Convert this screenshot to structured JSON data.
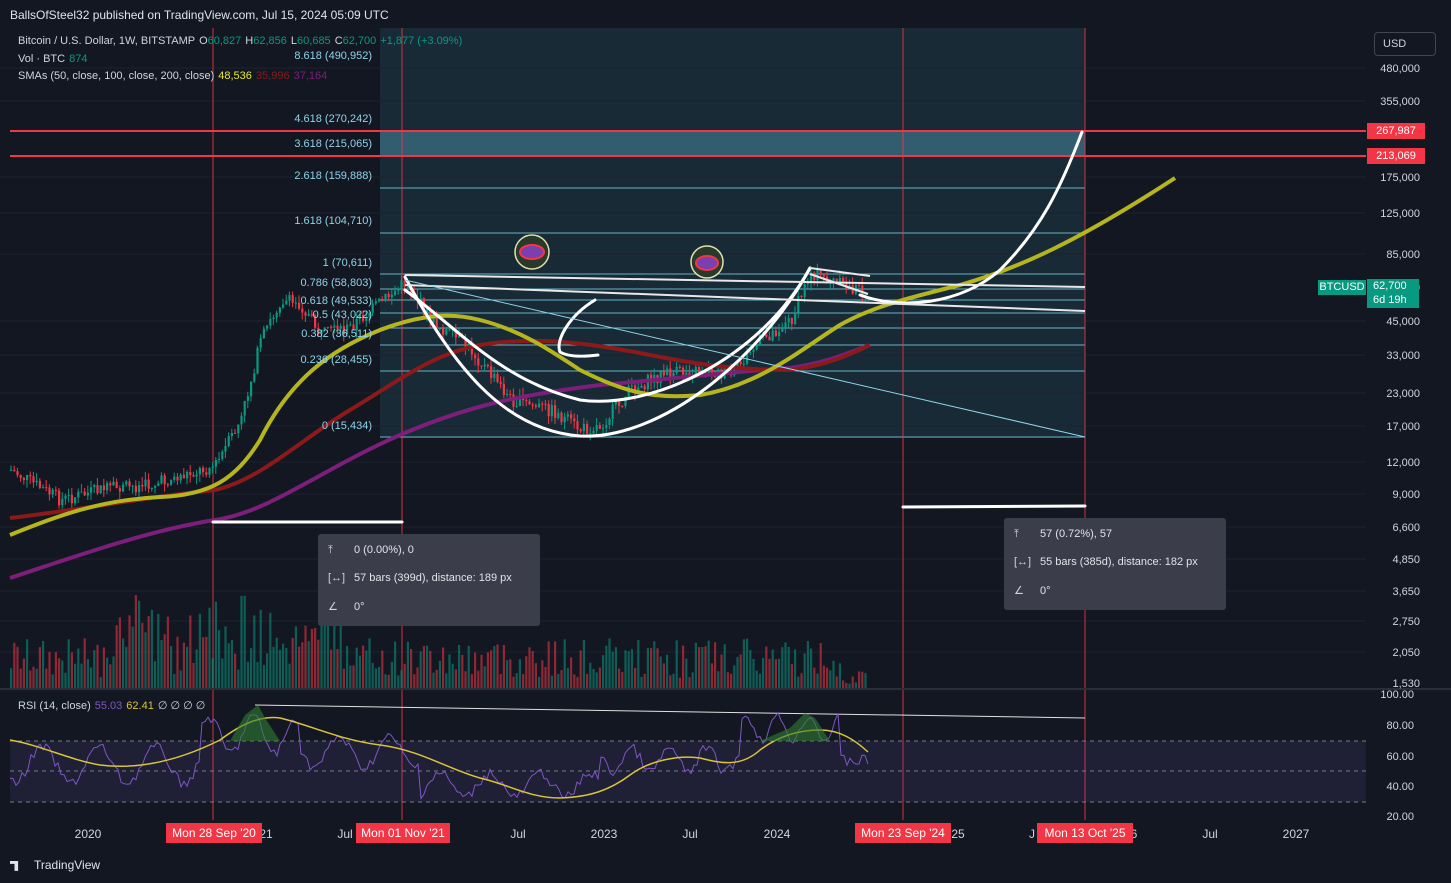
{
  "header": {
    "published": "BallsOfSteel32 published on TradingView.com, Jul 15, 2024 05:09 UTC"
  },
  "legend": {
    "symbol": "Bitcoin / U.S. Dollar, 1W, BITSTAMP",
    "open_label": "O",
    "open": "60,827",
    "high_label": "H",
    "high": "62,856",
    "low_label": "L",
    "low": "60,685",
    "close_label": "C",
    "close": "62,700",
    "change": "+1,877 (+3.09%)",
    "vol_label": "Vol · BTC",
    "vol": "874",
    "sma_label": "SMAs (50, close, 100, close, 200, close)",
    "sma50": "48,536",
    "sma100": "35,996",
    "sma200": "37,164",
    "rsi_label": "RSI (14, close)",
    "rsi": "55.03",
    "rsi_ma": "62.41",
    "rsi_extra": "∅ ∅ ∅ ∅"
  },
  "currency_button": "USD",
  "price_axis": [
    "480,000",
    "355,000",
    "175,000",
    "125,000",
    "85,000",
    "65,000",
    "45,000",
    "33,000",
    "23,000",
    "17,000",
    "12,000",
    "9,000",
    "6,600",
    "4,850",
    "3,650",
    "2,750",
    "2,050",
    "1,530"
  ],
  "rsi_axis": [
    "100.00",
    "80.00",
    "60.00",
    "40.00",
    "20.00"
  ],
  "price_tags": [
    {
      "label": "267,987",
      "color": "#f23645"
    },
    {
      "label": "213,069",
      "color": "#f23645"
    }
  ],
  "current_price": {
    "symbol": "BTCUSD",
    "price": "62,700",
    "countdown": "6d 19h",
    "color": "#089981"
  },
  "fib_levels": [
    {
      "ratio": "8.618",
      "text": "8.618 (490,952)"
    },
    {
      "ratio": "4.618",
      "text": "4.618 (270,242)"
    },
    {
      "ratio": "3.618",
      "text": "3.618 (215,065)"
    },
    {
      "ratio": "2.618",
      "text": "2.618 (159,888)"
    },
    {
      "ratio": "1.618",
      "text": "1.618 (104,710)"
    },
    {
      "ratio": "1",
      "text": "1 (70,611)"
    },
    {
      "ratio": "0.786",
      "text": "0.786 (58,803)"
    },
    {
      "ratio": "0.618",
      "text": "0.618 (49,533)"
    },
    {
      "ratio": "0.5",
      "text": "0.5 (43,022)"
    },
    {
      "ratio": "0.382",
      "text": "0.382 (36,511)"
    },
    {
      "ratio": "0.236",
      "text": "0.236 (28,455)"
    },
    {
      "ratio": "0",
      "text": "0 (15,434)"
    }
  ],
  "time_axis": [
    "2020",
    "21",
    "Jul",
    "Jul",
    "2023",
    "Jul",
    "2024",
    "25",
    "J",
    "6",
    "Jul",
    "2027"
  ],
  "time_markers": [
    "Mon 28 Sep '20",
    "Mon 01 Nov '21",
    "Mon 23 Sep '24",
    "Mon 13 Oct '25"
  ],
  "tooltips": [
    {
      "price_range": "0 (0.00%), 0",
      "bars_range": "57 bars (399d), distance: 189 px",
      "angle": "0°"
    },
    {
      "price_range": "57 (0.72%), 57",
      "bars_range": "55 bars (385d), distance: 182 px",
      "angle": "0°"
    }
  ],
  "footer": {
    "logo": "TradingView"
  },
  "colors": {
    "background": "#131722",
    "up": "#089981",
    "down": "#f23645",
    "sma50": "#b5b51f",
    "sma100": "#8b1a1a",
    "sma200": "#7b1f7b",
    "marker": "#f23645",
    "fib_fill": "#1e3a47",
    "rsi": "#7e57c2",
    "rsi_ma": "#d9c43a"
  }
}
